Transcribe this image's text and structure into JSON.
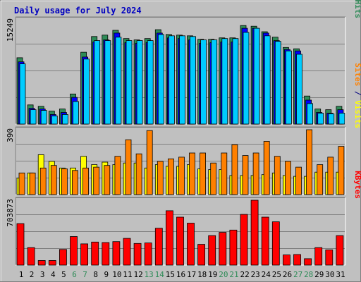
{
  "chart_data": {
    "type": "bar",
    "title": "Daily usage for July 2024",
    "categories": [
      "1",
      "2",
      "3",
      "4",
      "5",
      "6",
      "7",
      "8",
      "9",
      "10",
      "11",
      "12",
      "13",
      "14",
      "15",
      "16",
      "17",
      "18",
      "19",
      "20",
      "21",
      "22",
      "23",
      "24",
      "25",
      "26",
      "27",
      "28",
      "29",
      "30",
      "31"
    ],
    "weekend_days": [
      "6",
      "7",
      "13",
      "14",
      "20",
      "21",
      "27",
      "28"
    ],
    "panels": [
      {
        "id": "hits",
        "ytick_label": "15249",
        "ymax": 15249,
        "ylabel_parts": [
          {
            "text": "Pages",
            "color": "#00ccff"
          },
          {
            "text": " / ",
            "color": "#000080"
          },
          {
            "text": "Files",
            "color": "#0000ff"
          },
          {
            "text": " / ",
            "color": "#000080"
          },
          {
            "text": "Hits",
            "color": "#2e8b57"
          }
        ],
        "series": [
          {
            "name": "Hits",
            "color": "#2e8b57",
            "values": [
              9700,
              2800,
              2600,
              1900,
              2200,
              4400,
              10500,
              12800,
              13000,
              13700,
              12500,
              12300,
              12500,
              13800,
              13100,
              13000,
              12900,
              12400,
              12400,
              12600,
              12600,
              14400,
              14300,
              13500,
              12700,
              11200,
              11000,
              4100,
              2200,
              2100,
              2600
            ]
          },
          {
            "name": "Files",
            "color": "#0000ff",
            "values": [
              9100,
              2300,
              2200,
              1400,
              1700,
              3900,
              9800,
              12000,
              12300,
              13300,
              11900,
              11800,
              11900,
              13300,
              12600,
              12500,
              12300,
              11800,
              11900,
              12000,
              12000,
              14000,
              14000,
              13300,
              12200,
              10900,
              10700,
              3500,
              1700,
              1600,
              2100
            ]
          },
          {
            "name": "Pages",
            "color": "#00ccff",
            "values": [
              8800,
              2100,
              2000,
              1200,
              1400,
              3300,
              9500,
              12200,
              12200,
              12700,
              12200,
              12200,
              12200,
              13100,
              12900,
              12900,
              12800,
              12300,
              12300,
              12500,
              12500,
              13400,
              14000,
              12900,
              12100,
              10700,
              10200,
              3000,
              1600,
              1500,
              1600
            ]
          }
        ]
      },
      {
        "id": "visits",
        "ytick_label": "390",
        "ymax": 390,
        "ylabel_parts": [
          {
            "text": "Sites",
            "color": "#ff8000"
          },
          {
            "text": " / ",
            "color": "#000080"
          },
          {
            "text": "Visits",
            "color": "#ffff00"
          }
        ],
        "series": [
          {
            "name": "Visits",
            "color": "#ffff00",
            "values": [
              100,
              130,
              240,
              200,
              160,
              160,
              230,
              180,
              195,
              180,
              190,
              190,
              160,
              180,
              170,
              170,
              180,
              155,
              150,
              150,
              115,
              115,
              115,
              120,
              130,
              115,
              110,
              110,
              135,
              135,
              135
            ]
          },
          {
            "name": "Sites",
            "color": "#ff8000",
            "values": [
              130,
              130,
              160,
              175,
              155,
              145,
              160,
              165,
              175,
              230,
              330,
              245,
              385,
              200,
              215,
              225,
              250,
              250,
              190,
              250,
              300,
              235,
              250,
              320,
              230,
              200,
              165,
              390,
              180,
              225,
              290
            ]
          }
        ]
      },
      {
        "id": "kbytes",
        "ytick_label": "703873",
        "ymax": 703873,
        "ylabel_parts": [
          {
            "text": "KBytes",
            "color": "#ff0000"
          }
        ],
        "series": [
          {
            "name": "KBytes",
            "color": "#ff0000",
            "values": [
              450000,
              190000,
              50000,
              50000,
              170000,
              310000,
              230000,
              250000,
              245000,
              255000,
              290000,
              235000,
              240000,
              400000,
              590000,
              520000,
              455000,
              225000,
              320000,
              355000,
              380000,
              550000,
              703873,
              520000,
              470000,
              110000,
              115000,
              70000,
              190000,
              165000,
              320000
            ]
          }
        ]
      }
    ]
  }
}
